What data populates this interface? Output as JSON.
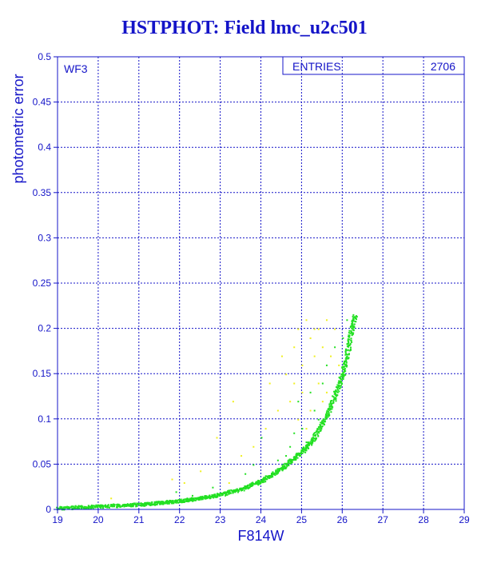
{
  "title": "HSTPHOT: Field lmc_u2c501",
  "chart_data": {
    "type": "scatter",
    "title": "HSTPHOT: Field lmc_u2c501",
    "xlabel": "F814W",
    "ylabel": "photometric error",
    "panel_label": "WF3",
    "stats": {
      "label": "ENTRIES",
      "value": "2706"
    },
    "xlim": [
      19,
      29
    ],
    "ylim": [
      0,
      0.5
    ],
    "xticks": [
      19,
      20,
      21,
      22,
      23,
      24,
      25,
      26,
      27,
      28,
      29
    ],
    "yticks": [
      0,
      0.05,
      0.1,
      0.15,
      0.2,
      0.25,
      0.3,
      0.35,
      0.4,
      0.45,
      0.5
    ],
    "grid": true,
    "colors": {
      "axis": "#1414c8",
      "grid": "#1414c8",
      "main": "#22e022",
      "other": "#f0f020"
    },
    "series": [
      {
        "color": "#22e022",
        "trend": [
          [
            19.0,
            0.002
          ],
          [
            20.0,
            0.004
          ],
          [
            21.0,
            0.006
          ],
          [
            21.5,
            0.008
          ],
          [
            22.0,
            0.01
          ],
          [
            22.5,
            0.013
          ],
          [
            23.0,
            0.017
          ],
          [
            23.5,
            0.023
          ],
          [
            24.0,
            0.032
          ],
          [
            24.5,
            0.046
          ],
          [
            25.0,
            0.064
          ],
          [
            25.3,
            0.08
          ],
          [
            25.6,
            0.104
          ],
          [
            25.8,
            0.125
          ],
          [
            26.0,
            0.15
          ],
          [
            26.1,
            0.17
          ],
          [
            26.2,
            0.195
          ],
          [
            26.3,
            0.215
          ]
        ],
        "scatter_points": [
          [
            21.9,
            0.02
          ],
          [
            22.3,
            0.016
          ],
          [
            23.1,
            0.02
          ],
          [
            23.8,
            0.05
          ],
          [
            24.0,
            0.08
          ],
          [
            24.4,
            0.055
          ],
          [
            24.6,
            0.06
          ],
          [
            24.8,
            0.085
          ],
          [
            24.9,
            0.12
          ],
          [
            25.0,
            0.09
          ],
          [
            25.2,
            0.13
          ],
          [
            25.3,
            0.11
          ],
          [
            25.5,
            0.14
          ],
          [
            25.6,
            0.16
          ],
          [
            25.7,
            0.12
          ],
          [
            25.8,
            0.18
          ],
          [
            25.9,
            0.14
          ],
          [
            26.0,
            0.19
          ],
          [
            26.1,
            0.21
          ],
          [
            25.4,
            0.1
          ],
          [
            25.1,
            0.075
          ],
          [
            24.7,
            0.07
          ],
          [
            23.6,
            0.04
          ],
          [
            22.8,
            0.025
          ]
        ]
      },
      {
        "color": "#f0f020",
        "points": [
          [
            20.3,
            0.013
          ],
          [
            21.8,
            0.034
          ],
          [
            22.1,
            0.03
          ],
          [
            22.5,
            0.043
          ],
          [
            22.9,
            0.08
          ],
          [
            23.2,
            0.03
          ],
          [
            23.3,
            0.12
          ],
          [
            23.5,
            0.06
          ],
          [
            23.8,
            0.07
          ],
          [
            24.1,
            0.09
          ],
          [
            24.2,
            0.14
          ],
          [
            24.4,
            0.11
          ],
          [
            24.5,
            0.17
          ],
          [
            24.6,
            0.15
          ],
          [
            24.7,
            0.12
          ],
          [
            24.8,
            0.18
          ],
          [
            24.9,
            0.2
          ],
          [
            25.0,
            0.16
          ],
          [
            25.1,
            0.21
          ],
          [
            25.2,
            0.19
          ],
          [
            25.3,
            0.17
          ],
          [
            25.4,
            0.2
          ],
          [
            25.5,
            0.18
          ],
          [
            25.6,
            0.21
          ],
          [
            25.7,
            0.17
          ],
          [
            25.8,
            0.2
          ],
          [
            25.9,
            0.16
          ],
          [
            25.0,
            0.13
          ],
          [
            25.2,
            0.11
          ],
          [
            25.4,
            0.14
          ],
          [
            24.9,
            0.1
          ],
          [
            25.6,
            0.13
          ],
          [
            25.1,
            0.09
          ],
          [
            25.5,
            0.12
          ],
          [
            25.3,
            0.2
          ],
          [
            24.8,
            0.14
          ]
        ]
      }
    ]
  }
}
